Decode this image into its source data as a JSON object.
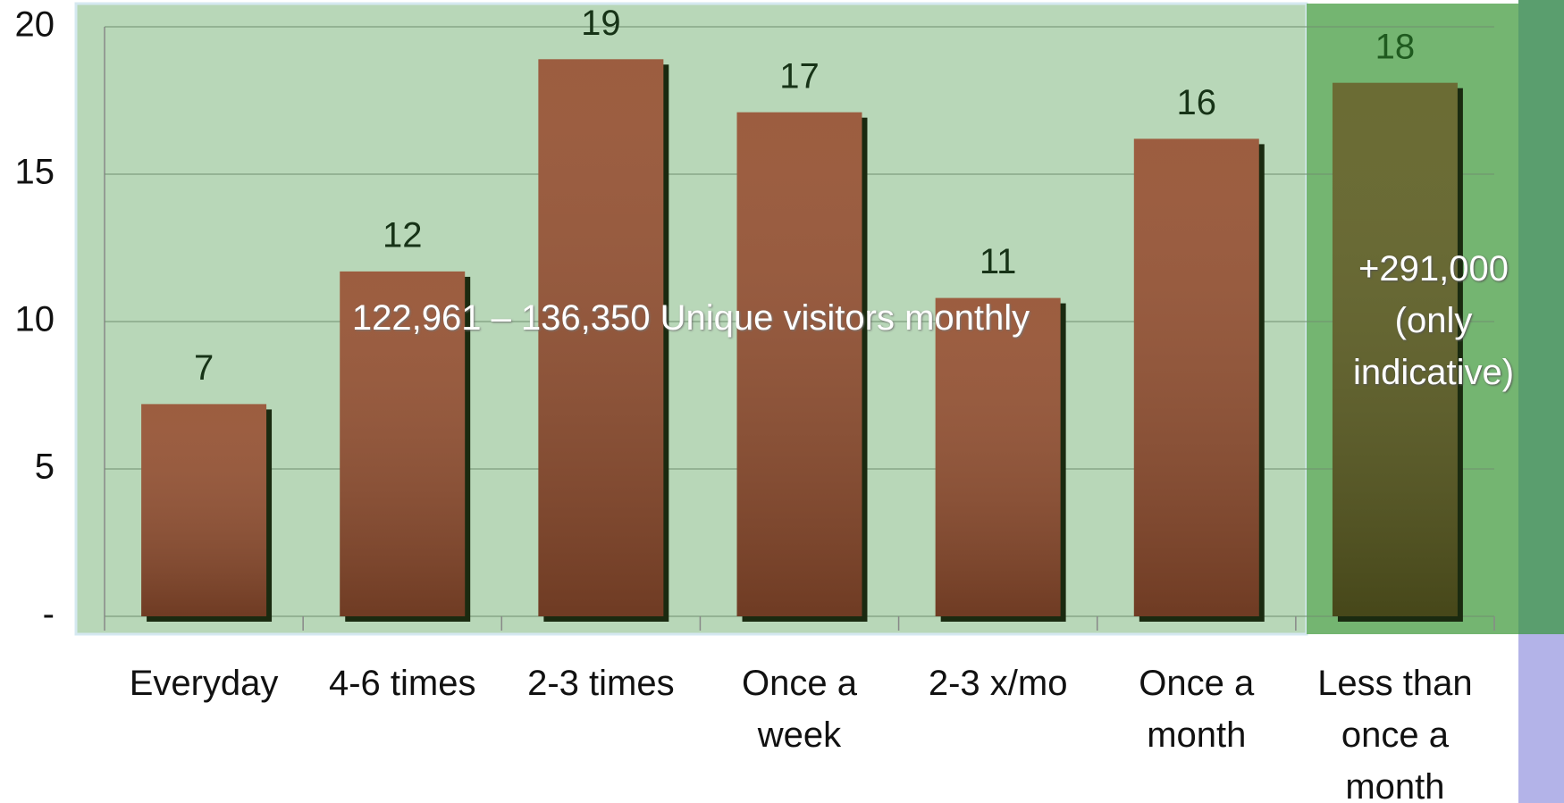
{
  "chart_data": {
    "type": "bar",
    "categories": [
      "Everyday",
      "4-6 times",
      "2-3 times",
      "Once a\nweek",
      "2-3 x/mo",
      "Once a\nmonth",
      "Less than\nonce a\nmonth"
    ],
    "values": [
      7.2,
      11.7,
      18.9,
      17.1,
      10.8,
      16.2,
      18.1
    ],
    "value_labels": [
      "7",
      "12",
      "19",
      "17",
      "11",
      "16",
      "18"
    ],
    "colors": [
      "#944f2f",
      "#944f2f",
      "#944f2f",
      "#944f2f",
      "#944f2f",
      "#944f2f",
      "#5e5f22"
    ],
    "ylim": [
      0,
      20
    ],
    "yticks": [
      {
        "value": 0,
        "label": "-"
      },
      5,
      10,
      15,
      20
    ],
    "grid": true,
    "annotations": [
      "122,961 – 136,350 Unique visitors monthly",
      "+291,000\n(only\nindicative)"
    ]
  }
}
